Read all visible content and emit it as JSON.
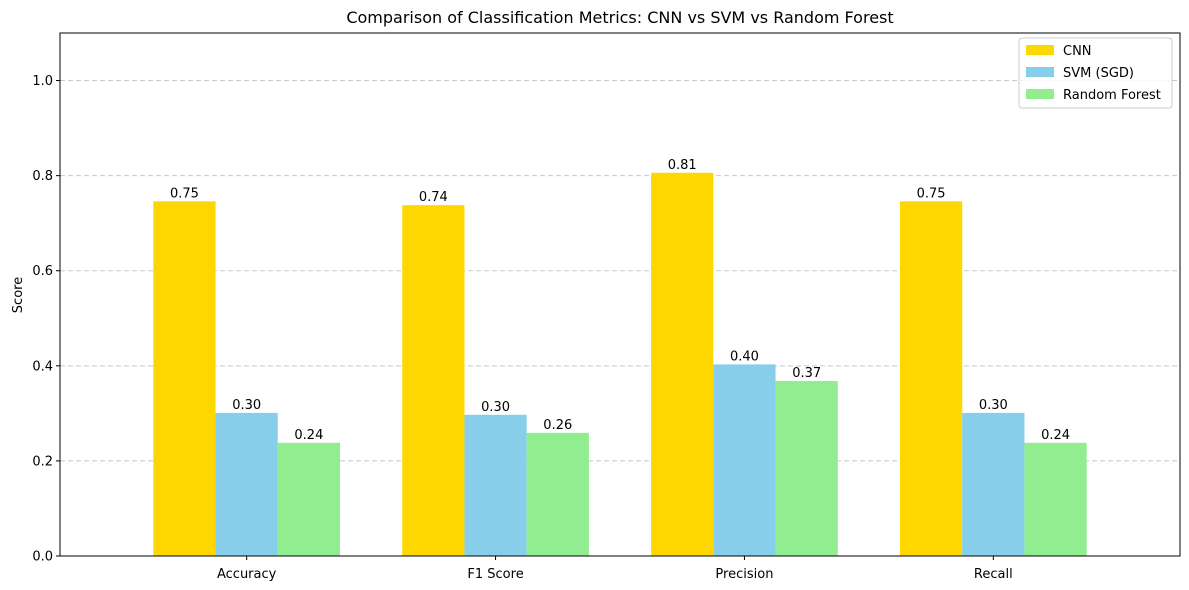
{
  "chart_data": {
    "type": "bar",
    "title": "Comparison of Classification Metrics: CNN vs SVM vs Random Forest",
    "xlabel": "",
    "ylabel": "Score",
    "ylim": [
      0,
      1.1
    ],
    "yticks": [
      0.0,
      0.2,
      0.4,
      0.6,
      0.8,
      1.0
    ],
    "ytick_labels": [
      "0.0",
      "0.2",
      "0.4",
      "0.6",
      "0.8",
      "1.0"
    ],
    "grid": "horizontal dashed",
    "legend_position": "top-right",
    "categories": [
      "Accuracy",
      "F1 Score",
      "Precision",
      "Recall"
    ],
    "series": [
      {
        "name": "CNN",
        "color": "#ffd700",
        "values": [
          0.746,
          0.738,
          0.806,
          0.746
        ],
        "labels": [
          "0.75",
          "0.74",
          "0.81",
          "0.75"
        ]
      },
      {
        "name": "SVM (SGD)",
        "color": "#87ceeb",
        "values": [
          0.301,
          0.297,
          0.403,
          0.301
        ],
        "labels": [
          "0.30",
          "0.30",
          "0.40",
          "0.30"
        ]
      },
      {
        "name": "Random Forest",
        "color": "#90ee90",
        "values": [
          0.238,
          0.259,
          0.368,
          0.238
        ],
        "labels": [
          "0.24",
          "0.26",
          "0.37",
          "0.24"
        ]
      }
    ]
  }
}
